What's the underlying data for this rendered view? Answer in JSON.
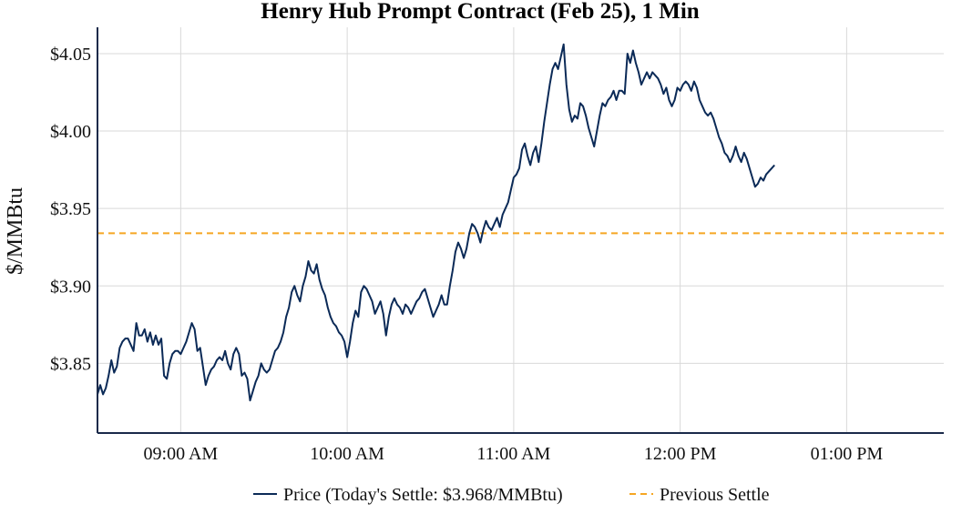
{
  "chart_data": {
    "type": "line",
    "title": "Henry Hub Prompt Contract (Feb 25), 1 Min",
    "ylabel": "$/MMBtu",
    "xlabel": "",
    "x_range_minutes": [
      510,
      815
    ],
    "ylim": [
      3.805,
      4.067
    ],
    "yticks": [
      {
        "value": 3.85,
        "label": "$3.85"
      },
      {
        "value": 3.9,
        "label": "$3.90"
      },
      {
        "value": 3.95,
        "label": "$3.95"
      },
      {
        "value": 4.0,
        "label": "$4.00"
      },
      {
        "value": 4.05,
        "label": "$4.05"
      }
    ],
    "xticks": [
      {
        "minute": 540,
        "label": "09:00 AM"
      },
      {
        "minute": 600,
        "label": "10:00 AM"
      },
      {
        "minute": 660,
        "label": "11:00 AM"
      },
      {
        "minute": 720,
        "label": "12:00 PM"
      },
      {
        "minute": 780,
        "label": "01:00 PM"
      }
    ],
    "grid": true,
    "legend_position": "bottom-center",
    "series": [
      {
        "name": "Price (Today's Settle: $3.968/MMBtu)",
        "color": "#0b2a57",
        "style": "solid",
        "x_start_minute": 510,
        "values": [
          3.83,
          3.836,
          3.83,
          3.834,
          3.842,
          3.852,
          3.844,
          3.848,
          3.86,
          3.864,
          3.866,
          3.866,
          3.862,
          3.858,
          3.876,
          3.868,
          3.868,
          3.872,
          3.864,
          3.87,
          3.862,
          3.868,
          3.862,
          3.866,
          3.842,
          3.84,
          3.85,
          3.856,
          3.858,
          3.858,
          3.856,
          3.86,
          3.864,
          3.87,
          3.876,
          3.872,
          3.858,
          3.86,
          3.848,
          3.836,
          3.842,
          3.846,
          3.848,
          3.852,
          3.854,
          3.852,
          3.858,
          3.85,
          3.846,
          3.856,
          3.86,
          3.856,
          3.842,
          3.844,
          3.84,
          3.826,
          3.832,
          3.838,
          3.842,
          3.85,
          3.846,
          3.844,
          3.846,
          3.852,
          3.858,
          3.86,
          3.864,
          3.87,
          3.88,
          3.886,
          3.896,
          3.9,
          3.894,
          3.89,
          3.9,
          3.906,
          3.916,
          3.91,
          3.908,
          3.914,
          3.904,
          3.898,
          3.894,
          3.886,
          3.88,
          3.876,
          3.874,
          3.87,
          3.868,
          3.864,
          3.854,
          3.864,
          3.876,
          3.884,
          3.88,
          3.896,
          3.9,
          3.898,
          3.894,
          3.89,
          3.882,
          3.886,
          3.89,
          3.882,
          3.868,
          3.88,
          3.888,
          3.892,
          3.888,
          3.886,
          3.882,
          3.888,
          3.886,
          3.882,
          3.886,
          3.89,
          3.892,
          3.896,
          3.898,
          3.892,
          3.886,
          3.88,
          3.884,
          3.888,
          3.894,
          3.888,
          3.888,
          3.9,
          3.91,
          3.922,
          3.928,
          3.924,
          3.918,
          3.924,
          3.934,
          3.94,
          3.938,
          3.934,
          3.928,
          3.936,
          3.942,
          3.938,
          3.936,
          3.94,
          3.944,
          3.938,
          3.946,
          3.95,
          3.954,
          3.962,
          3.97,
          3.972,
          3.976,
          3.988,
          3.992,
          3.984,
          3.978,
          3.986,
          3.99,
          3.98,
          3.992,
          4.006,
          4.018,
          4.03,
          4.04,
          4.044,
          4.04,
          4.048,
          4.056,
          4.03,
          4.014,
          4.006,
          4.01,
          4.008,
          4.018,
          4.016,
          4.01,
          4.002,
          3.996,
          3.99,
          4.0,
          4.01,
          4.018,
          4.016,
          4.02,
          4.022,
          4.026,
          4.02,
          4.026,
          4.026,
          4.024,
          4.05,
          4.044,
          4.052,
          4.044,
          4.038,
          4.03,
          4.034,
          4.038,
          4.034,
          4.038,
          4.036,
          4.034,
          4.03,
          4.024,
          4.028,
          4.02,
          4.016,
          4.02,
          4.028,
          4.026,
          4.03,
          4.032,
          4.03,
          4.026,
          4.032,
          4.028,
          4.02,
          4.016,
          4.012,
          4.01,
          4.012,
          4.008,
          4.002,
          3.996,
          3.992,
          3.986,
          3.984,
          3.98,
          3.984,
          3.99,
          3.984,
          3.98,
          3.986,
          3.982,
          3.976,
          3.97,
          3.964,
          3.966,
          3.97,
          3.968,
          3.972,
          3.974,
          3.976,
          3.978
        ]
      },
      {
        "name": "Previous Settle",
        "color": "#f5a623",
        "style": "dashed",
        "constant_value": 3.934
      }
    ]
  }
}
